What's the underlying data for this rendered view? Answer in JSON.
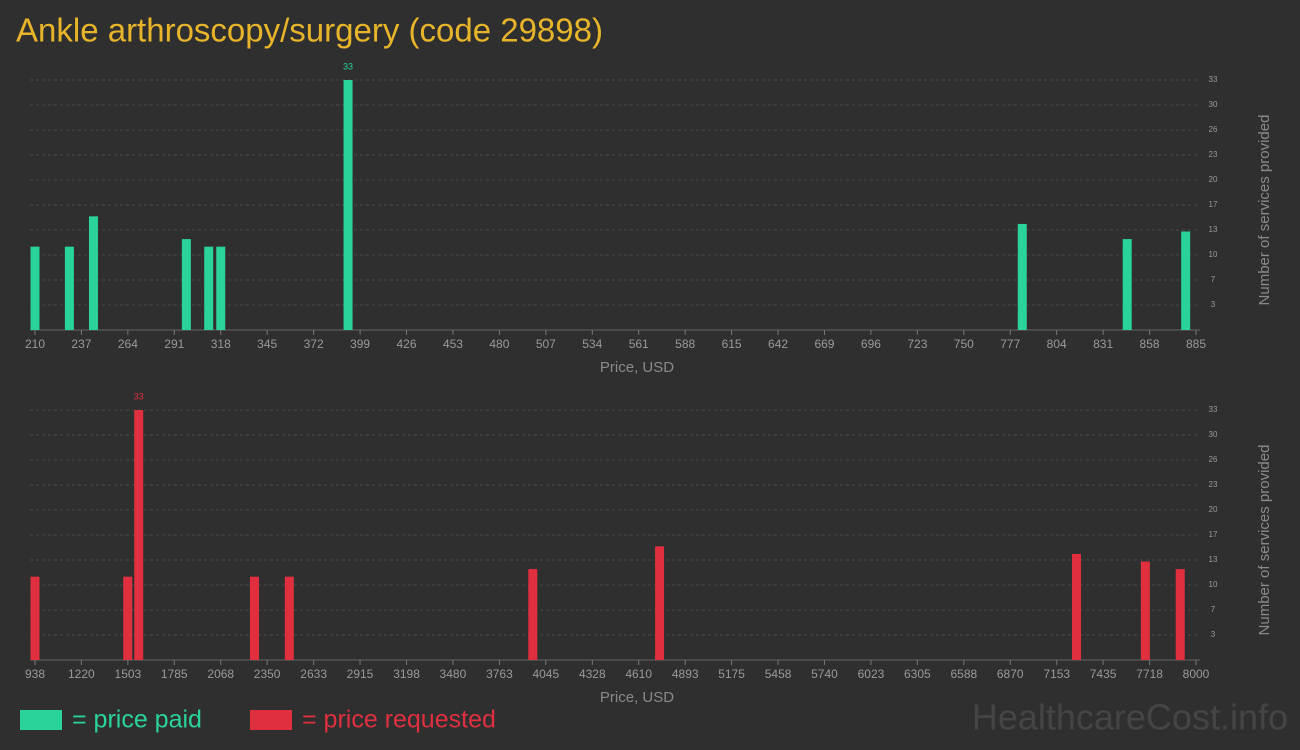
{
  "chart_data": [
    {
      "type": "bar",
      "title": "Ankle arthroscopy/surgery (code 29898)",
      "x_label": "Price, USD",
      "y_label": "Number of services provided",
      "xlim": [
        210,
        885
      ],
      "xticks": [
        210,
        237,
        264,
        291,
        318,
        345,
        372,
        399,
        426,
        453,
        480,
        507,
        534,
        561,
        588,
        615,
        642,
        669,
        696,
        723,
        750,
        777,
        804,
        831,
        858,
        885
      ],
      "ylim": [
        0,
        33
      ],
      "yticks": [
        {
          "value": 3.3,
          "label": "3"
        },
        {
          "value": 6.6,
          "label": "7"
        },
        {
          "value": 9.9,
          "label": "10"
        },
        {
          "value": 13.2,
          "label": "13"
        },
        {
          "value": 16.5,
          "label": "17"
        },
        {
          "value": 19.8,
          "label": "20"
        },
        {
          "value": 23.1,
          "label": "23"
        },
        {
          "value": 26.4,
          "label": "26"
        },
        {
          "value": 29.7,
          "label": "30"
        },
        33
      ],
      "grid": true,
      "series": [
        {
          "name": "= price paid",
          "color": "#2ad39a",
          "x": [
            210,
            230,
            244,
            298,
            311,
            318,
            392,
            784,
            845,
            879
          ],
          "values": [
            11,
            11,
            15,
            12,
            11,
            11,
            33,
            14,
            12,
            13
          ]
        }
      ]
    },
    {
      "type": "bar",
      "x_label": "Price, USD",
      "y_label": "Number of services provided",
      "xlim": [
        938,
        8000
      ],
      "xticks": [
        938,
        1220,
        1503,
        1785,
        2068,
        2350,
        2633,
        2915,
        3198,
        3480,
        3763,
        4045,
        4328,
        4610,
        4893,
        5175,
        5458,
        5740,
        6023,
        6305,
        6588,
        6870,
        7153,
        7435,
        7718,
        8000
      ],
      "ylim": [
        0,
        33
      ],
      "yticks": [
        {
          "value": 3.3,
          "label": "3"
        },
        {
          "value": 6.6,
          "label": "7"
        },
        {
          "value": 9.9,
          "label": "10"
        },
        {
          "value": 13.2,
          "label": "13"
        },
        {
          "value": 16.5,
          "label": "17"
        },
        {
          "value": 19.8,
          "label": "20"
        },
        {
          "value": 23.1,
          "label": "23"
        },
        {
          "value": 26.4,
          "label": "26"
        },
        {
          "value": 29.7,
          "label": "30"
        },
        33
      ],
      "grid": true,
      "series": [
        {
          "name": "= price requested",
          "color": "#e0303f",
          "x": [
            938,
            1502,
            1569,
            2273,
            2485,
            3966,
            4737,
            7273,
            7692,
            7904
          ],
          "values": [
            11,
            11,
            33,
            11,
            11,
            12,
            15,
            14,
            13,
            12
          ]
        }
      ]
    }
  ],
  "watermark": "HealthcareCost.info"
}
